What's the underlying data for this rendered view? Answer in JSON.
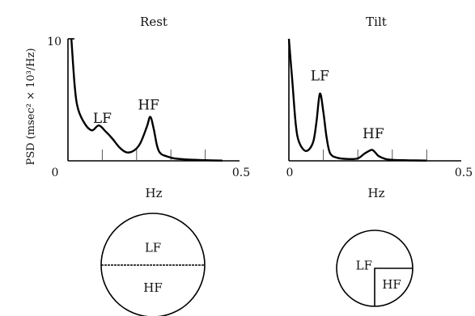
{
  "chart_data": [
    {
      "type": "line",
      "title": "Rest",
      "xlabel": "Hz",
      "ylabel": "PSD (msec² × 10³/Hz)",
      "xlim": [
        0,
        0.5
      ],
      "ylim": [
        0,
        10
      ],
      "x_tick_labels": [
        "0",
        "0.5"
      ],
      "y_tick_labels": [
        "10"
      ],
      "series": [
        {
          "x": [
            0.01,
            0.02,
            0.03,
            0.05,
            0.07,
            0.09,
            0.11,
            0.13,
            0.15,
            0.17,
            0.19,
            0.21,
            0.23,
            0.24,
            0.25,
            0.26,
            0.27,
            0.29,
            0.31,
            0.35,
            0.4,
            0.45
          ],
          "y": [
            10,
            6.0,
            4.2,
            3.0,
            2.5,
            2.9,
            2.4,
            1.8,
            1.1,
            0.7,
            0.8,
            1.4,
            2.8,
            3.6,
            2.6,
            1.2,
            0.6,
            0.35,
            0.2,
            0.1,
            0.05,
            0.02
          ]
        }
      ],
      "annotations": [
        {
          "text": "LF",
          "x": 0.1,
          "y": 3.1
        },
        {
          "text": "HF",
          "x": 0.235,
          "y": 4.2
        }
      ]
    },
    {
      "type": "line",
      "title": "Tilt",
      "xlabel": "Hz",
      "xlim": [
        0,
        0.5
      ],
      "ylim": [
        0,
        10
      ],
      "x_tick_labels": [
        "0",
        "0.5"
      ],
      "series": [
        {
          "x": [
            0.0,
            0.01,
            0.02,
            0.03,
            0.05,
            0.07,
            0.08,
            0.09,
            0.1,
            0.11,
            0.12,
            0.14,
            0.17,
            0.2,
            0.22,
            0.24,
            0.25,
            0.26,
            0.28,
            0.3,
            0.35,
            0.4
          ],
          "y": [
            10,
            6.5,
            3.0,
            1.5,
            0.8,
            1.5,
            3.2,
            5.5,
            4.0,
            1.8,
            0.6,
            0.25,
            0.15,
            0.2,
            0.6,
            0.9,
            0.7,
            0.4,
            0.15,
            0.08,
            0.04,
            0.02
          ]
        }
      ],
      "annotations": [
        {
          "text": "LF",
          "x": 0.09,
          "y": 6.6
        },
        {
          "text": "HF",
          "x": 0.245,
          "y": 1.85
        }
      ]
    },
    {
      "type": "pie",
      "title": "Rest",
      "categories": [
        "LF",
        "HF"
      ],
      "values": [
        50,
        50
      ]
    },
    {
      "type": "pie",
      "title": "Tilt",
      "categories": [
        "LF",
        "HF"
      ],
      "values": [
        75,
        25
      ]
    }
  ],
  "colors": {
    "ink": "#000000",
    "background": "#ffffff"
  }
}
